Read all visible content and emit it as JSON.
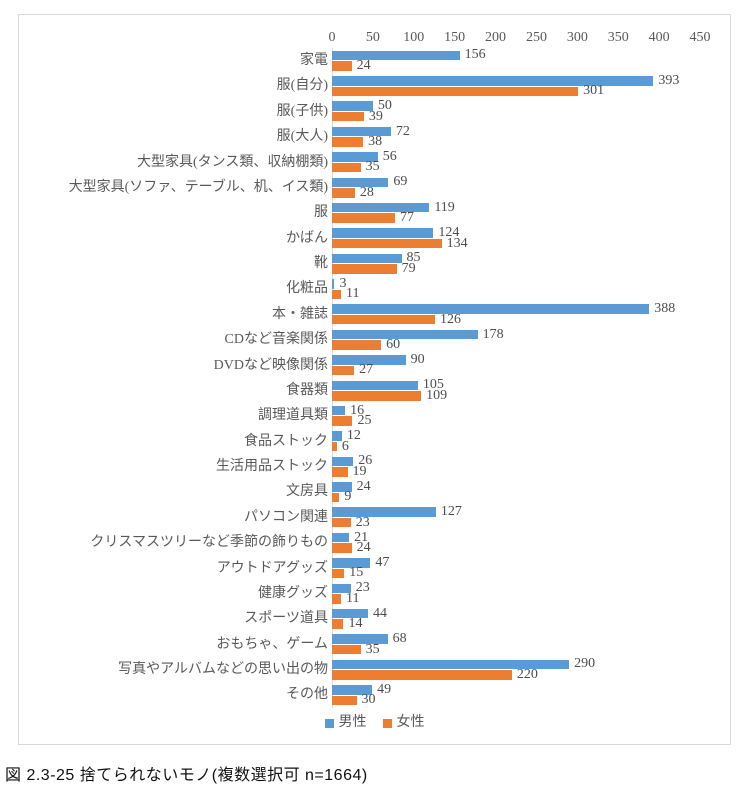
{
  "caption": "図 2.3-25 捨てられないモノ(複数選択可 n=1664)",
  "colors": {
    "male": "#5B9BD5",
    "female": "#ED7D31",
    "axis_line": "#D9D9D9",
    "chart_border": "#D9D9D9",
    "tick_text": "#595959",
    "label_text": "#4d4d4d"
  },
  "chart_data": {
    "type": "bar",
    "orientation": "horizontal",
    "title": "",
    "xlabel": "",
    "ylabel": "",
    "xlim": [
      0,
      450
    ],
    "x_ticks": [
      0,
      50,
      100,
      150,
      200,
      250,
      300,
      350,
      400,
      450
    ],
    "grid": false,
    "data_labels": true,
    "legend_position": "bottom",
    "categories": [
      "家電",
      "服(自分)",
      "服(子供)",
      "服(大人)",
      "大型家具(タンス類、収納棚類)",
      "大型家具(ソファ、テーブル、机、イス類)",
      "服",
      "かばん",
      "靴",
      "化粧品",
      "本・雑誌",
      "CDなど音楽関係",
      "DVDなど映像関係",
      "食器類",
      "調理道具類",
      "食品ストック",
      "生活用品ストック",
      "文房具",
      "パソコン関連",
      "クリスマスツリーなど季節の飾りもの",
      "アウトドアグッズ",
      "健康グッズ",
      "スポーツ道具",
      "おもちゃ、ゲーム",
      "写真やアルバムなどの思い出の物",
      "その他"
    ],
    "series": [
      {
        "name": "男性",
        "key": "male",
        "color": "#5B9BD5",
        "values": [
          156,
          393,
          50,
          72,
          56,
          69,
          119,
          124,
          85,
          3,
          388,
          178,
          90,
          105,
          16,
          12,
          26,
          24,
          127,
          21,
          47,
          23,
          44,
          68,
          290,
          49
        ]
      },
      {
        "name": "女性",
        "key": "female",
        "color": "#ED7D31",
        "values": [
          24,
          301,
          39,
          38,
          35,
          28,
          77,
          134,
          79,
          11,
          126,
          60,
          27,
          109,
          25,
          6,
          19,
          9,
          23,
          24,
          15,
          11,
          14,
          35,
          220,
          30
        ]
      }
    ]
  }
}
